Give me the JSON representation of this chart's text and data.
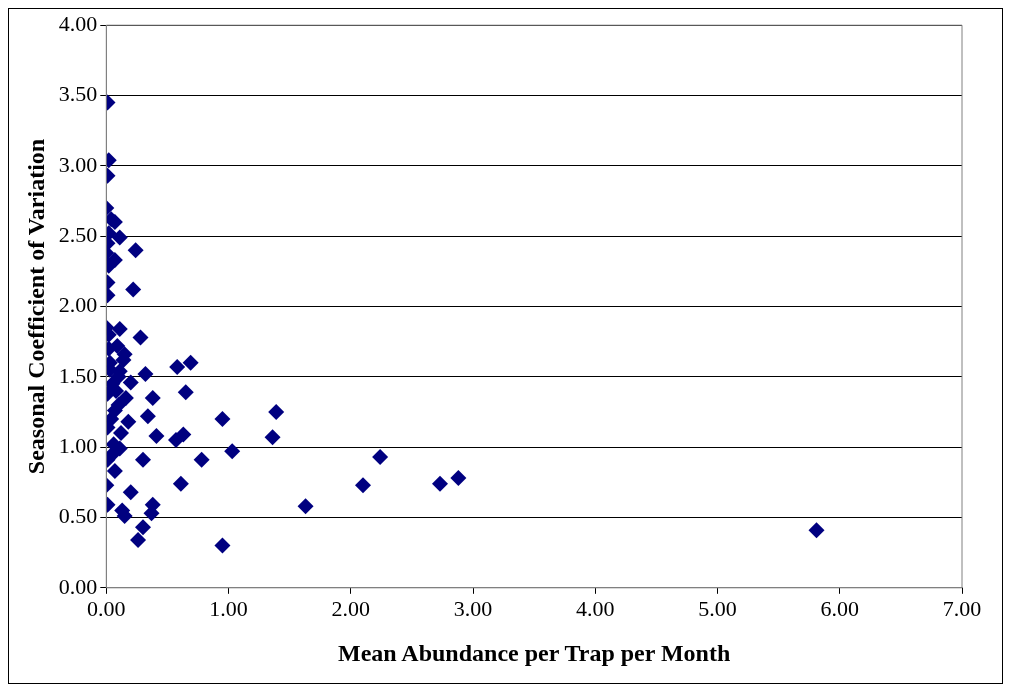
{
  "chart_data": {
    "type": "scatter",
    "xlabel": "Mean Abundance per Trap per Month",
    "ylabel": "Seasonal Coefficient of Variation",
    "xlim": [
      0,
      7
    ],
    "xticks": [
      {
        "value": 0,
        "label": "0.00"
      },
      {
        "value": 1,
        "label": "1.00"
      },
      {
        "value": 2,
        "label": "2.00"
      },
      {
        "value": 3,
        "label": "3.00"
      },
      {
        "value": 4,
        "label": "4.00"
      },
      {
        "value": 5,
        "label": "5.00"
      },
      {
        "value": 6,
        "label": "6.00"
      },
      {
        "value": 7,
        "label": "7.00"
      }
    ],
    "ylim": [
      0,
      4
    ],
    "yticks": [
      {
        "value": 0,
        "label": "0.00"
      },
      {
        "value": 0.5,
        "label": "0.50"
      },
      {
        "value": 1,
        "label": "1.00"
      },
      {
        "value": 1.5,
        "label": "1.50"
      },
      {
        "value": 2,
        "label": "2.00"
      },
      {
        "value": 2.5,
        "label": "2.50"
      },
      {
        "value": 3,
        "label": "3.00"
      },
      {
        "value": 3.5,
        "label": "3.50"
      },
      {
        "value": 4,
        "label": "4.00"
      }
    ],
    "grid": "y",
    "marker": "diamond",
    "series": [
      {
        "color": "#000080",
        "x": [
          0.01,
          0.02,
          0.01,
          0,
          0.07,
          0.11,
          0.01,
          0.24,
          0.02,
          0.07,
          0.01,
          0.01,
          0.22,
          0,
          0.11,
          0.28,
          0.02,
          0.15,
          0.32,
          0.58,
          0.69,
          0.11,
          0.2,
          0.65,
          0.38,
          0.01,
          0.07,
          0.34,
          1.39,
          0.95,
          0.18,
          0.41,
          0.63,
          0.57,
          1.36,
          0.01,
          0.11,
          1.03,
          0.78,
          0.3,
          2.24,
          0.01,
          0.07,
          0.61,
          2.1,
          2.73,
          2.88,
          0,
          0.2,
          1.63,
          0.38,
          0.37,
          0.01,
          0.13,
          0.15,
          0.3,
          0.26,
          0.95,
          5.81,
          0.03,
          0.05,
          0.08,
          0.1,
          0.04,
          0.12,
          0.06,
          0.09,
          0.14,
          0.03,
          0.02,
          0.04,
          0,
          0.05,
          0.1,
          0.16,
          0.02
        ],
        "values": [
          3.45,
          3.04,
          2.93,
          2.7,
          2.6,
          2.49,
          2.45,
          2.4,
          2.29,
          2.33,
          2.17,
          2.08,
          2.12,
          1.85,
          1.84,
          1.78,
          1.7,
          1.66,
          1.52,
          1.57,
          1.6,
          1.54,
          1.46,
          1.39,
          1.35,
          1.38,
          1.26,
          1.22,
          1.25,
          1.2,
          1.18,
          1.08,
          1.09,
          1.05,
          1.07,
          1.14,
          0.99,
          0.97,
          0.91,
          0.91,
          0.93,
          0.91,
          0.83,
          0.74,
          0.73,
          0.74,
          0.78,
          0.73,
          0.68,
          0.58,
          0.59,
          0.53,
          0.59,
          0.55,
          0.51,
          0.43,
          0.34,
          0.3,
          0.41,
          1.6,
          1.45,
          1.4,
          1.3,
          1.2,
          1.1,
          1.02,
          1.72,
          1.62,
          1.55,
          2.52,
          2.62,
          2.38,
          0.95,
          1.5,
          1.35,
          1.8
        ]
      }
    ]
  }
}
